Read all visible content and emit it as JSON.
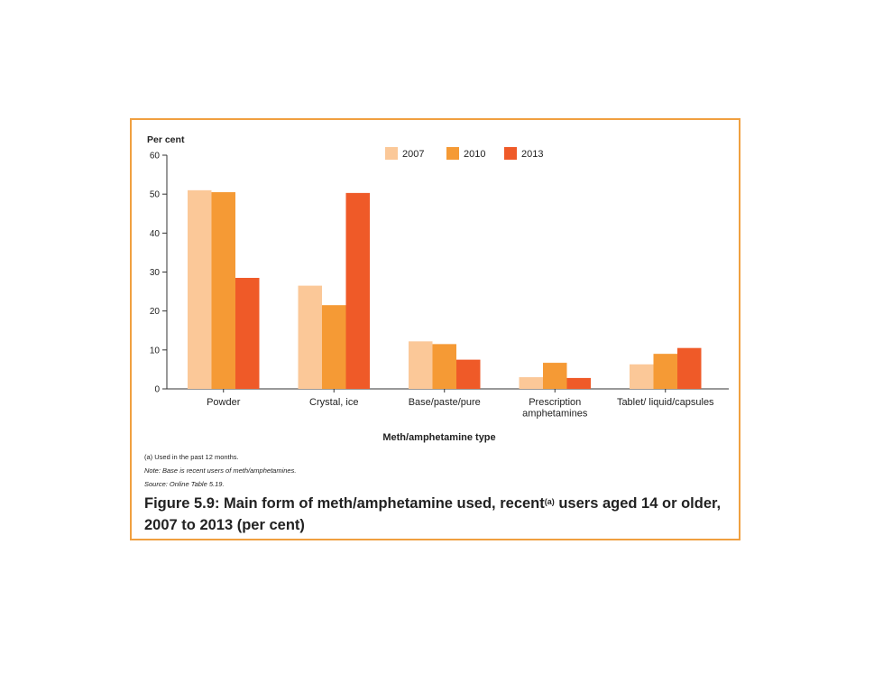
{
  "colors": {
    "frame": "#f0a040",
    "s2007": "#fbc898",
    "s2010": "#f59a35",
    "s2013": "#ef5a28"
  },
  "chart_data": {
    "type": "bar",
    "ylabel": "Per cent",
    "xlabel": "Meth/amphetamine type",
    "ylim": [
      0,
      60
    ],
    "yticks": [
      0,
      10,
      20,
      30,
      40,
      50,
      60
    ],
    "categories": [
      [
        "Powder"
      ],
      [
        "Crystal, ice"
      ],
      [
        "Base/paste/pure"
      ],
      [
        "Prescription",
        "amphetamines"
      ],
      [
        "Tablet/ liquid/capsules"
      ]
    ],
    "series": [
      {
        "name": "2007",
        "color": "#fbc898",
        "values": [
          51,
          26.5,
          12.2,
          3.0,
          6.3
        ]
      },
      {
        "name": "2010",
        "color": "#f59a35",
        "values": [
          50.5,
          21.5,
          11.5,
          6.7,
          9.0
        ]
      },
      {
        "name": "2013",
        "color": "#ef5a28",
        "values": [
          28.5,
          50.3,
          7.5,
          2.8,
          10.5
        ]
      }
    ],
    "legend_position": "top-center",
    "grid": false
  },
  "notes": {
    "note_a": "(a) Used in the past 12 months.",
    "note_base": "Note: Base is recent users of meth/amphetamines.",
    "source": "Source: Online Table 5.19."
  },
  "caption": {
    "main": "Figure 5.9: Main form of meth/amphetamine used, recent",
    "sup": "(a)",
    "rest": " users aged 14 or older, 2007 to 2013 (per cent)"
  }
}
